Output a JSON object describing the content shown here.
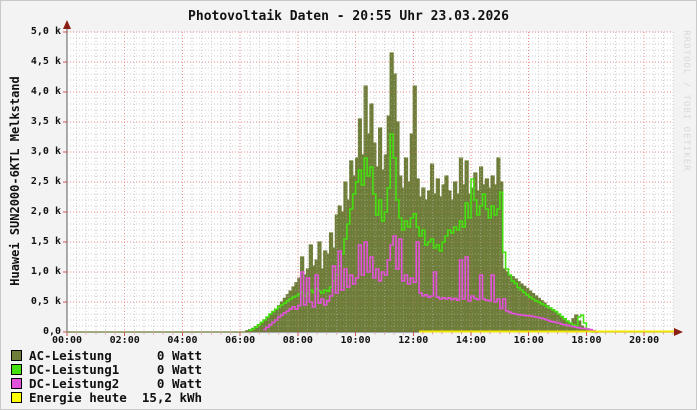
{
  "watermark": "RRDTOOL / TOBI OETIKER",
  "legend": [
    {
      "name": "ac-leistung",
      "label": "AC-Leistung",
      "value": "0 Watt",
      "color": "#6e7d39"
    },
    {
      "name": "dc-leistung1",
      "label": "DC-Leistung1",
      "value": "0 Watt",
      "color": "#45e010"
    },
    {
      "name": "dc-leistung2",
      "label": "DC-Leistung2",
      "value": "0 Watt",
      "color": "#e352dc"
    },
    {
      "name": "energie-heute",
      "label": "Energie heute",
      "value": "15,2 kWh",
      "color": "#ffff00"
    }
  ],
  "colors": {
    "background": "#f3f3f3",
    "canvas": "#fefefe",
    "minor_grid": "#cfcfcf",
    "major_grid": "#ee8b8b",
    "axis": "#5a5a5a",
    "arrow": "#8c1f14",
    "major_tick": "#cc5555",
    "minor_tick": "#dda5a5"
  },
  "chart_data": {
    "type": "area",
    "title": "Photovoltaik Daten - 20:55 Uhr 23.03.2026",
    "ylabel_rotated": "Huawei SUN2000-6KTL Melkstand",
    "xlim_hours": [
      0,
      21.0
    ],
    "ylim_watt": [
      0,
      5000
    ],
    "grid": {
      "minor_x_minutes": 20,
      "major_x_hours": 2,
      "minor_y_watt": 100,
      "major_y_watt": 500
    },
    "x_ticks": [
      {
        "hour": 0,
        "label": "00:00"
      },
      {
        "hour": 2,
        "label": "02:00"
      },
      {
        "hour": 4,
        "label": "04:00"
      },
      {
        "hour": 6,
        "label": "06:00"
      },
      {
        "hour": 8,
        "label": "08:00"
      },
      {
        "hour": 10,
        "label": "10:00"
      },
      {
        "hour": 12,
        "label": "12:00"
      },
      {
        "hour": 14,
        "label": "14:00"
      },
      {
        "hour": 16,
        "label": "16:00"
      },
      {
        "hour": 18,
        "label": "18:00"
      },
      {
        "hour": 20,
        "label": "20:00"
      }
    ],
    "y_ticks": [
      {
        "watt": 0,
        "label": "0,0"
      },
      {
        "watt": 500,
        "label": "0,5 k"
      },
      {
        "watt": 1000,
        "label": "1,0 k"
      },
      {
        "watt": 1500,
        "label": "1,5 k"
      },
      {
        "watt": 2000,
        "label": "2,0 k"
      },
      {
        "watt": 2500,
        "label": "2,5 k"
      },
      {
        "watt": 3000,
        "label": "3,0 k"
      },
      {
        "watt": 3500,
        "label": "3,5 k"
      },
      {
        "watt": 4000,
        "label": "4,0 k"
      },
      {
        "watt": 4500,
        "label": "4,5 k"
      },
      {
        "watt": 5000,
        "label": "5,0 k"
      }
    ],
    "series": [
      {
        "name": "AC-Leistung",
        "type": "area",
        "color": "#6e7d39",
        "start_hour": 6.0,
        "step_hours": 0.1,
        "values_watt": [
          0,
          0,
          20,
          40,
          60,
          90,
          120,
          160,
          200,
          240,
          280,
          330,
          380,
          440,
          500,
          560,
          620,
          680,
          750,
          820,
          900,
          1250,
          950,
          1050,
          1450,
          1100,
          1200,
          1500,
          1050,
          1350,
          1300,
          1650,
          1400,
          1950,
          2100,
          2000,
          2500,
          2200,
          2850,
          2600,
          2900,
          3550,
          2950,
          4100,
          3300,
          3800,
          3150,
          2750,
          3400,
          2700,
          2950,
          3600,
          4650,
          4300,
          3500,
          2600,
          2400,
          2900,
          2500,
          3300,
          4100,
          2550,
          2250,
          2400,
          2200,
          2350,
          2800,
          2300,
          2550,
          2250,
          2450,
          2600,
          2350,
          2200,
          2500,
          2300,
          2900,
          2450,
          2850,
          2300,
          2400,
          2650,
          2350,
          2750,
          2450,
          2550,
          2400,
          2600,
          2450,
          2900,
          2500,
          1050,
          1000,
          950,
          920,
          880,
          840,
          800,
          760,
          720,
          680,
          640,
          600,
          560,
          520,
          480,
          440,
          400,
          360,
          320,
          280,
          240,
          200,
          160,
          130,
          220,
          280,
          180,
          100,
          60,
          30,
          10,
          0,
          0,
          0,
          0
        ]
      },
      {
        "name": "DC-Leistung1",
        "type": "line",
        "color": "#45e010",
        "start_hour": 6.3,
        "step_hours": 0.1,
        "values_watt": [
          30,
          50,
          80,
          120,
          160,
          200,
          250,
          300,
          340,
          380,
          420,
          450,
          480,
          520,
          550,
          580,
          600,
          630,
          660,
          600,
          640,
          700,
          660,
          720,
          680,
          650,
          700,
          680,
          750,
          850,
          950,
          1100,
          1300,
          1550,
          1800,
          2050,
          2300,
          2500,
          2700,
          2450,
          2900,
          2600,
          2750,
          2300,
          1950,
          2200,
          1850,
          2000,
          2400,
          3300,
          2900,
          2200,
          1900,
          1700,
          1850,
          1750,
          1900,
          1970,
          1750,
          1600,
          1700,
          1450,
          1500,
          1550,
          1400,
          1450,
          1350,
          1500,
          1600,
          1700,
          1650,
          1750,
          1700,
          1850,
          1750,
          2150,
          1900,
          2550,
          2200,
          1950,
          2100,
          2300,
          2050,
          1900,
          2100,
          1950,
          2050,
          2330,
          1330,
          1050,
          950,
          850,
          810,
          740,
          700,
          660,
          620,
          580,
          550,
          520,
          500,
          470,
          450,
          420,
          400,
          370,
          340,
          300,
          260,
          220,
          180,
          150,
          120,
          100,
          250,
          280,
          150,
          50,
          20,
          0,
          0
        ]
      },
      {
        "name": "DC-Leistung2",
        "type": "line",
        "color": "#e352dc",
        "start_hour": 6.8,
        "step_hours": 0.1,
        "values_watt": [
          40,
          80,
          120,
          160,
          200,
          250,
          280,
          320,
          350,
          380,
          420,
          380,
          440,
          1000,
          450,
          900,
          500,
          420,
          950,
          480,
          550,
          450,
          520,
          600,
          1100,
          650,
          1350,
          700,
          1050,
          750,
          950,
          800,
          900,
          1450,
          950,
          1500,
          1000,
          1250,
          900,
          1050,
          850,
          1000,
          950,
          1200,
          1450,
          1600,
          1050,
          1550,
          850,
          950,
          800,
          900,
          830,
          1500,
          650,
          600,
          620,
          580,
          600,
          1000,
          580,
          550,
          570,
          550,
          570,
          540,
          560,
          530,
          1200,
          550,
          1250,
          520,
          600,
          560,
          540,
          950,
          550,
          530,
          520,
          950,
          500,
          550,
          390,
          550,
          350,
          330,
          310,
          300,
          290,
          280,
          280,
          270,
          270,
          260,
          250,
          240,
          230,
          220,
          200,
          180,
          170,
          160,
          150,
          130,
          120,
          110,
          100,
          90,
          80,
          70,
          60,
          60,
          50,
          40,
          20,
          0
        ]
      },
      {
        "name": "Energie heute",
        "type": "flat-line",
        "color": "#f2e500",
        "value_kwh": 15.2,
        "flat_segment": {
          "start_hour": 12.2,
          "end_hour": 21.05,
          "display_watt": 15
        }
      }
    ]
  }
}
